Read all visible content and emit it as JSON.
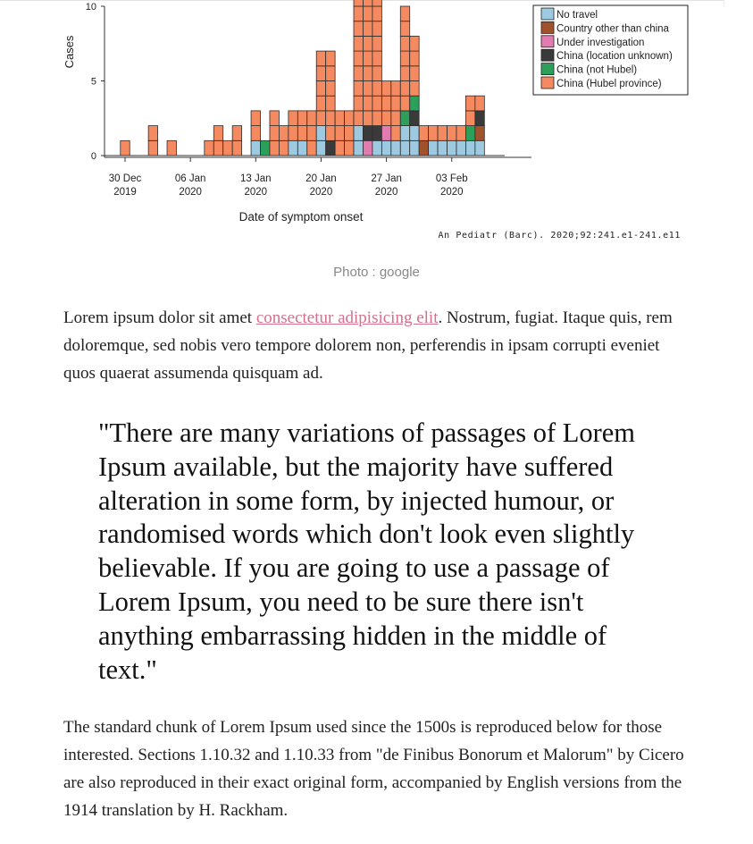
{
  "figure": {
    "caption": "Photo : google",
    "source": "An Pediatr (Barc). 2020;92:241.e1-241.e11"
  },
  "chart_data": {
    "type": "bar",
    "stacked": true,
    "xlabel": "Date of symptom onset",
    "ylabel": "Cases",
    "yticks": [
      0,
      5,
      10
    ],
    "ylim": [
      0,
      10
    ],
    "xticks": [
      {
        "label": [
          "30 Dec",
          "2019"
        ],
        "day": 0
      },
      {
        "label": [
          "06 Jan",
          "2020"
        ],
        "day": 7
      },
      {
        "label": [
          "13 Jan",
          "2020"
        ],
        "day": 14
      },
      {
        "label": [
          "20 Jan",
          "2020"
        ],
        "day": 21
      },
      {
        "label": [
          "27 Jan",
          "2020"
        ],
        "day": 28
      },
      {
        "label": [
          "03 Feb",
          "2020"
        ],
        "day": 35
      }
    ],
    "legend_position": "top-right",
    "series": [
      {
        "name": "No travel",
        "color": "#9ecae1"
      },
      {
        "name": "Country other than china",
        "color": "#a0522d"
      },
      {
        "name": "Under investigation",
        "color": "#e27bb0"
      },
      {
        "name": "China (location unknown)",
        "color": "#3a3a3a"
      },
      {
        "name": "China (not Hubel)",
        "color": "#2ca05a"
      },
      {
        "name": "China (Hubel province)",
        "color": "#f58a60"
      }
    ],
    "bars": [
      {
        "day": 0,
        "counts": [
          0,
          0,
          0,
          0,
          0,
          1
        ]
      },
      {
        "day": 3,
        "counts": [
          0,
          0,
          0,
          0,
          0,
          2
        ]
      },
      {
        "day": 5,
        "counts": [
          0,
          0,
          0,
          0,
          0,
          1
        ]
      },
      {
        "day": 9,
        "counts": [
          0,
          0,
          0,
          0,
          0,
          1
        ]
      },
      {
        "day": 10,
        "counts": [
          0,
          0,
          0,
          0,
          0,
          2
        ]
      },
      {
        "day": 11,
        "counts": [
          0,
          0,
          0,
          0,
          0,
          1
        ]
      },
      {
        "day": 12,
        "counts": [
          0,
          0,
          0,
          0,
          0,
          2
        ]
      },
      {
        "day": 14,
        "counts": [
          1,
          0,
          0,
          0,
          0,
          2
        ]
      },
      {
        "day": 15,
        "counts": [
          0,
          0,
          0,
          0,
          1,
          0
        ]
      },
      {
        "day": 16,
        "counts": [
          0,
          0,
          0,
          0,
          0,
          3
        ]
      },
      {
        "day": 17,
        "counts": [
          0,
          0,
          0,
          0,
          0,
          2
        ]
      },
      {
        "day": 18,
        "counts": [
          1,
          0,
          0,
          0,
          0,
          2
        ]
      },
      {
        "day": 19,
        "counts": [
          1,
          0,
          0,
          0,
          0,
          2
        ]
      },
      {
        "day": 20,
        "counts": [
          0,
          0,
          0,
          0,
          0,
          3
        ]
      },
      {
        "day": 21,
        "counts": [
          2,
          0,
          0,
          0,
          0,
          5
        ]
      },
      {
        "day": 22,
        "counts": [
          0,
          0,
          0,
          1,
          0,
          6
        ]
      },
      {
        "day": 23,
        "counts": [
          0,
          0,
          0,
          0,
          0,
          3
        ]
      },
      {
        "day": 24,
        "counts": [
          0,
          0,
          0,
          0,
          0,
          3
        ]
      },
      {
        "day": 25,
        "counts": [
          2,
          0,
          0,
          0,
          0,
          10
        ]
      },
      {
        "day": 26,
        "counts": [
          0,
          0,
          1,
          1,
          0,
          9
        ]
      },
      {
        "day": 27,
        "counts": [
          1,
          0,
          0,
          1,
          0,
          9
        ]
      },
      {
        "day": 28,
        "counts": [
          1,
          0,
          1,
          0,
          0,
          3
        ]
      },
      {
        "day": 29,
        "counts": [
          1,
          0,
          0,
          0,
          0,
          4
        ]
      },
      {
        "day": 30,
        "counts": [
          2,
          0,
          0,
          0,
          1,
          7
        ]
      },
      {
        "day": 31,
        "counts": [
          2,
          0,
          0,
          1,
          1,
          4
        ]
      },
      {
        "day": 32,
        "counts": [
          0,
          1,
          0,
          0,
          0,
          1
        ]
      },
      {
        "day": 33,
        "counts": [
          1,
          0,
          0,
          0,
          0,
          1
        ]
      },
      {
        "day": 34,
        "counts": [
          1,
          0,
          0,
          0,
          0,
          1
        ]
      },
      {
        "day": 35,
        "counts": [
          1,
          0,
          0,
          0,
          0,
          1
        ]
      },
      {
        "day": 36,
        "counts": [
          1,
          0,
          0,
          0,
          0,
          1
        ]
      },
      {
        "day": 37,
        "counts": [
          1,
          0,
          0,
          0,
          1,
          2
        ]
      },
      {
        "day": 38,
        "counts": [
          1,
          1,
          0,
          1,
          0,
          1
        ]
      }
    ]
  },
  "intro": {
    "before_link": "Lorem ipsum dolor sit amet ",
    "link_text": "consectetur adipisicing elit",
    "after_link": ". Nostrum, fugiat. Itaque quis, rem doloremque, sed nobis vero tempore dolorem non, perferendis in ipsam corrupti eveniet quos quaerat assumenda quisquam ad."
  },
  "quote": {
    "text": "\"There are many variations of passages of Lorem Ipsum available, but the majority have suffered alteration in some form, by injected humour, or randomised words which don't look even slightly believable. If you are going to use a passage of Lorem Ipsum, you need to be sure there isn't anything embarrassing hidden in the middle of text.\""
  },
  "body": {
    "text": "The standard chunk of Lorem Ipsum used since the 1500s is reproduced below for those interested. Sections 1.10.32 and 1.10.33 from \"de Finibus Bonorum et Malorum\" by Cicero are also reproduced in their exact original form, accompanied by English versions from the 1914 translation by H. Rackham."
  }
}
